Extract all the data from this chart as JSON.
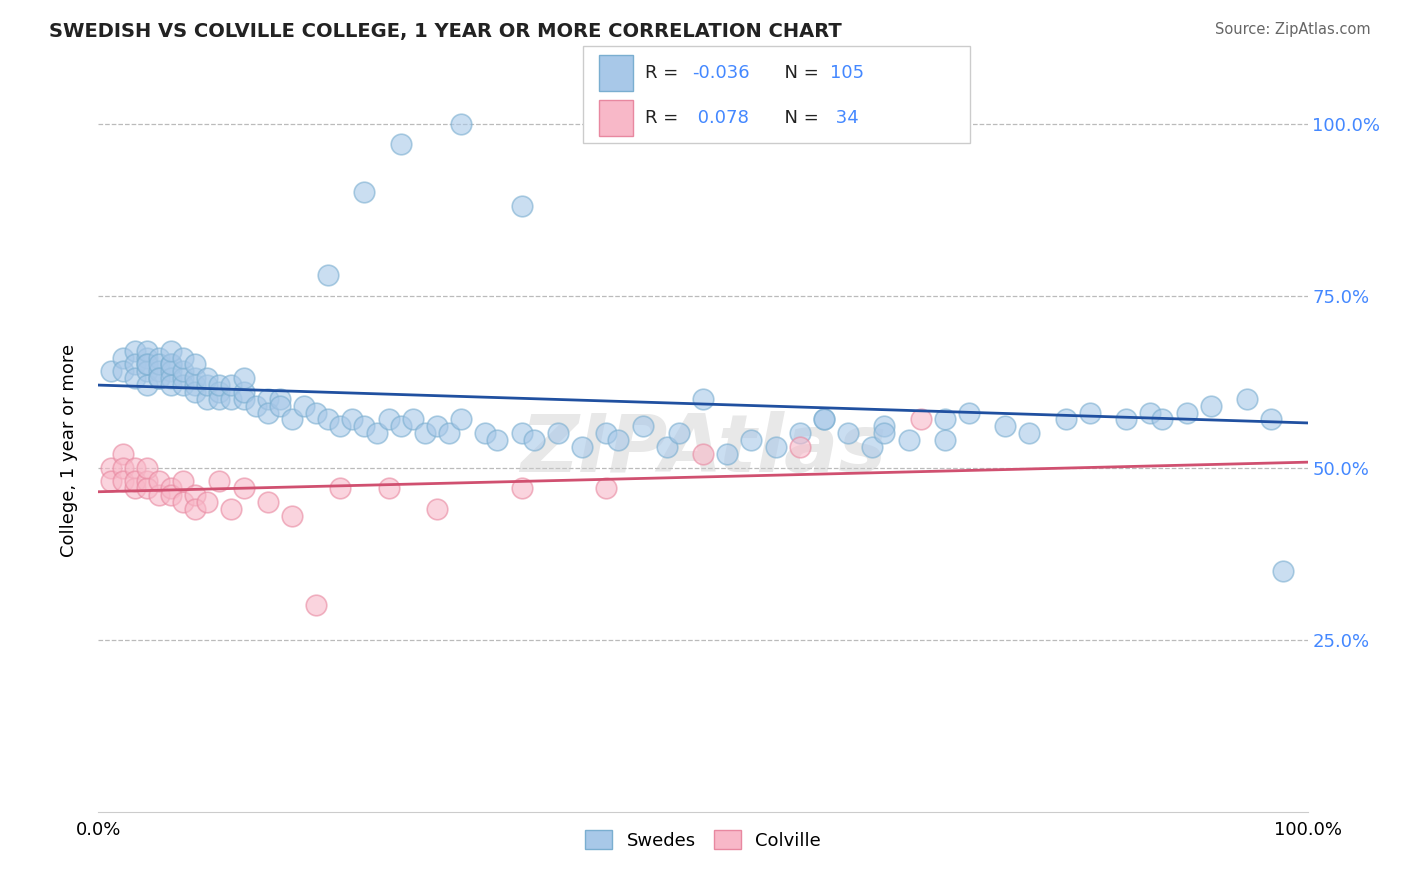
{
  "title": "SWEDISH VS COLVILLE COLLEGE, 1 YEAR OR MORE CORRELATION CHART",
  "source_text": "Source: ZipAtlas.com",
  "ylabel": "College, 1 year or more",
  "xlim": [
    0.0,
    1.0
  ],
  "ylim": [
    0.0,
    1.05
  ],
  "x_tick_labels": [
    "0.0%",
    "100.0%"
  ],
  "y_tick_labels": [
    "25.0%",
    "50.0%",
    "75.0%",
    "100.0%"
  ],
  "y_tick_positions": [
    0.25,
    0.5,
    0.75,
    1.0
  ],
  "legend_blue_r": "-0.036",
  "legend_blue_n": "105",
  "legend_pink_r": "0.078",
  "legend_pink_n": "34",
  "blue_scatter_color": "#a8c8e8",
  "blue_edge_color": "#7aaed0",
  "pink_scatter_color": "#f8b8c8",
  "pink_edge_color": "#e888a0",
  "blue_line_color": "#2050a0",
  "pink_line_color": "#d05070",
  "watermark": "ZIPAtlas",
  "blue_trend_y_start": 0.62,
  "blue_trend_y_end": 0.565,
  "pink_trend_y_start": 0.465,
  "pink_trend_y_end": 0.508,
  "swedes_x": [
    0.01,
    0.02,
    0.02,
    0.03,
    0.03,
    0.03,
    0.04,
    0.04,
    0.04,
    0.04,
    0.04,
    0.04,
    0.05,
    0.05,
    0.05,
    0.05,
    0.05,
    0.06,
    0.06,
    0.06,
    0.06,
    0.06,
    0.06,
    0.07,
    0.07,
    0.07,
    0.07,
    0.08,
    0.08,
    0.08,
    0.08,
    0.09,
    0.09,
    0.09,
    0.1,
    0.1,
    0.1,
    0.11,
    0.11,
    0.12,
    0.12,
    0.12,
    0.13,
    0.14,
    0.14,
    0.15,
    0.15,
    0.16,
    0.17,
    0.18,
    0.19,
    0.2,
    0.21,
    0.22,
    0.23,
    0.24,
    0.25,
    0.26,
    0.27,
    0.28,
    0.29,
    0.3,
    0.32,
    0.33,
    0.35,
    0.36,
    0.38,
    0.4,
    0.42,
    0.43,
    0.45,
    0.47,
    0.48,
    0.5,
    0.52,
    0.54,
    0.56,
    0.58,
    0.6,
    0.62,
    0.64,
    0.65,
    0.67,
    0.7,
    0.72,
    0.75,
    0.77,
    0.8,
    0.82,
    0.85,
    0.87,
    0.88,
    0.9,
    0.92,
    0.95,
    0.97,
    0.98,
    0.6,
    0.65,
    0.7,
    0.19,
    0.22,
    0.25,
    0.3,
    0.35
  ],
  "swedes_y": [
    0.64,
    0.66,
    0.64,
    0.67,
    0.65,
    0.63,
    0.66,
    0.65,
    0.64,
    0.62,
    0.67,
    0.65,
    0.66,
    0.64,
    0.63,
    0.65,
    0.63,
    0.65,
    0.64,
    0.63,
    0.62,
    0.65,
    0.67,
    0.63,
    0.62,
    0.64,
    0.66,
    0.62,
    0.61,
    0.63,
    0.65,
    0.6,
    0.62,
    0.63,
    0.61,
    0.6,
    0.62,
    0.6,
    0.62,
    0.6,
    0.61,
    0.63,
    0.59,
    0.6,
    0.58,
    0.6,
    0.59,
    0.57,
    0.59,
    0.58,
    0.57,
    0.56,
    0.57,
    0.56,
    0.55,
    0.57,
    0.56,
    0.57,
    0.55,
    0.56,
    0.55,
    0.57,
    0.55,
    0.54,
    0.55,
    0.54,
    0.55,
    0.53,
    0.55,
    0.54,
    0.56,
    0.53,
    0.55,
    0.6,
    0.52,
    0.54,
    0.53,
    0.55,
    0.57,
    0.55,
    0.53,
    0.56,
    0.54,
    0.57,
    0.58,
    0.56,
    0.55,
    0.57,
    0.58,
    0.57,
    0.58,
    0.57,
    0.58,
    0.59,
    0.6,
    0.57,
    0.35,
    0.57,
    0.55,
    0.54,
    0.78,
    0.9,
    0.97,
    1.0,
    0.88
  ],
  "colville_x": [
    0.01,
    0.01,
    0.02,
    0.02,
    0.02,
    0.03,
    0.03,
    0.03,
    0.04,
    0.04,
    0.04,
    0.05,
    0.05,
    0.06,
    0.06,
    0.07,
    0.07,
    0.08,
    0.08,
    0.09,
    0.1,
    0.11,
    0.12,
    0.14,
    0.16,
    0.18,
    0.2,
    0.24,
    0.28,
    0.35,
    0.42,
    0.5,
    0.58,
    0.68
  ],
  "colville_y": [
    0.5,
    0.48,
    0.52,
    0.5,
    0.48,
    0.5,
    0.47,
    0.48,
    0.48,
    0.47,
    0.5,
    0.46,
    0.48,
    0.47,
    0.46,
    0.48,
    0.45,
    0.46,
    0.44,
    0.45,
    0.48,
    0.44,
    0.47,
    0.45,
    0.43,
    0.3,
    0.47,
    0.47,
    0.44,
    0.47,
    0.47,
    0.52,
    0.53,
    0.57
  ]
}
